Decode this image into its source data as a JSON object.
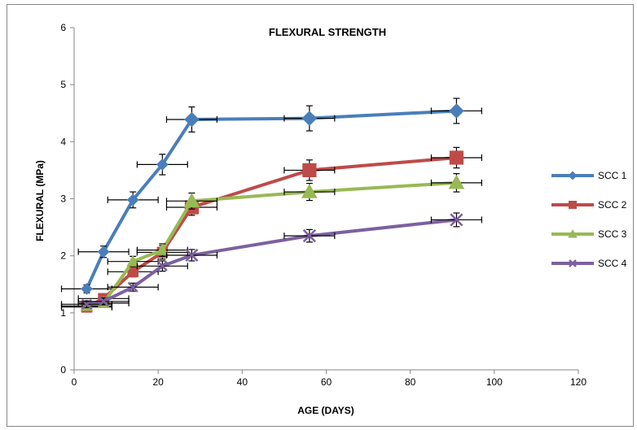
{
  "chart_data": {
    "type": "line",
    "title": "FLEXURAL STRENGTH",
    "xlabel": "AGE (DAYS)",
    "ylabel": "FLEXURAL (MPa)",
    "xlim": [
      0,
      120
    ],
    "ylim": [
      0,
      6
    ],
    "xticks": [
      "0",
      "20",
      "40",
      "60",
      "80",
      "100",
      "120"
    ],
    "yticks": [
      "0",
      "1",
      "2",
      "3",
      "4",
      "5",
      "6"
    ],
    "grid": false,
    "legend_position": "right",
    "error_bars": true,
    "series": [
      {
        "name": "SCC 1",
        "color": "#4a7ebb",
        "marker": "diamond",
        "x": [
          3,
          7,
          14,
          21,
          28,
          56,
          91
        ],
        "y": [
          1.42,
          2.07,
          2.98,
          3.6,
          4.39,
          4.41,
          4.54
        ],
        "yerr": [
          0.07,
          0.1,
          0.14,
          0.18,
          0.22,
          0.22,
          0.22
        ]
      },
      {
        "name": "SCC 2",
        "color": "#be4b48",
        "marker": "square",
        "x": [
          3,
          7,
          14,
          21,
          28,
          56,
          91
        ],
        "y": [
          1.1,
          1.25,
          1.72,
          2.06,
          2.85,
          3.5,
          3.72
        ],
        "yerr": [
          0.07,
          0.07,
          0.09,
          0.12,
          0.14,
          0.18,
          0.18
        ]
      },
      {
        "name": "SCC 3",
        "color": "#98b954",
        "marker": "triangle",
        "x": [
          3,
          7,
          14,
          21,
          28,
          56,
          91
        ],
        "y": [
          1.12,
          1.17,
          1.9,
          2.1,
          2.96,
          3.12,
          3.28
        ],
        "yerr": [
          0.06,
          0.07,
          0.09,
          0.11,
          0.14,
          0.15,
          0.16
        ]
      },
      {
        "name": "SCC 4",
        "color": "#7d60a0",
        "marker": "x",
        "x": [
          3,
          7,
          14,
          21,
          28,
          56,
          91
        ],
        "y": [
          1.15,
          1.2,
          1.45,
          1.82,
          2.01,
          2.35,
          2.63
        ],
        "yerr": [
          0.06,
          0.06,
          0.07,
          0.09,
          0.1,
          0.11,
          0.12
        ]
      }
    ]
  }
}
